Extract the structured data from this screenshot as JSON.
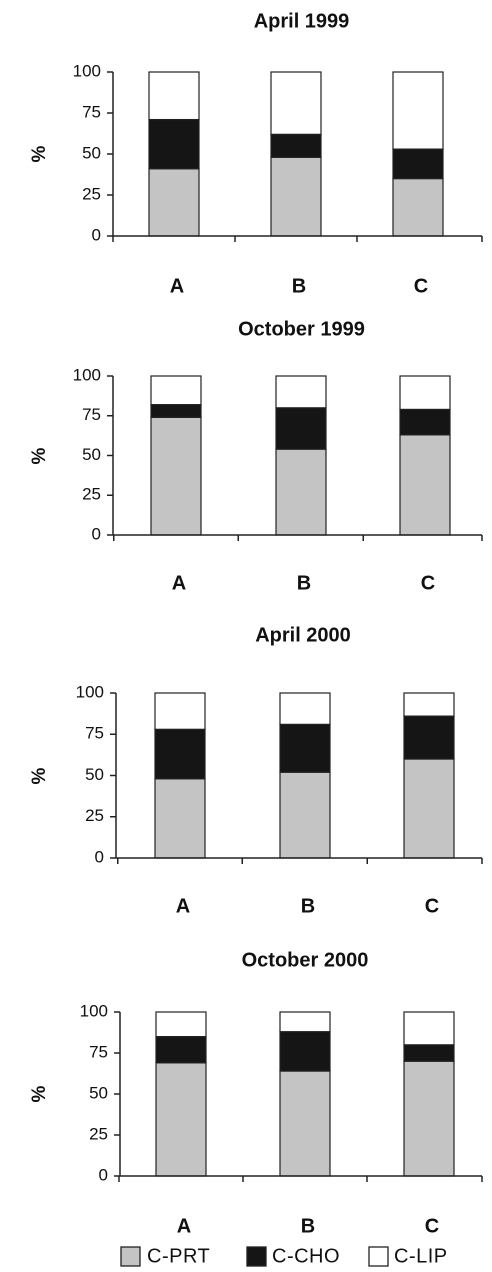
{
  "colors": {
    "prt": "#c4c4c4",
    "cho": "#151515",
    "lip": "#ffffff",
    "outline": "#222222"
  },
  "legend": [
    {
      "key": "prt",
      "label": "C-PRT"
    },
    {
      "key": "cho",
      "label": "C-CHO"
    },
    {
      "key": "lip",
      "label": "C-LIP"
    }
  ],
  "chart_data": [
    {
      "type": "bar",
      "stacked": true,
      "title": "April 1999",
      "categories": [
        "A",
        "B",
        "C"
      ],
      "ylabel": "%",
      "ylim": [
        0,
        100
      ],
      "yticks": [
        0,
        25,
        50,
        75,
        100
      ],
      "series": [
        {
          "name": "C-PRT",
          "key": "prt",
          "values": [
            41,
            48,
            35
          ]
        },
        {
          "name": "C-CHO",
          "key": "cho",
          "values": [
            30,
            14,
            18
          ]
        },
        {
          "name": "C-LIP",
          "key": "lip",
          "values": [
            29,
            38,
            47
          ]
        }
      ]
    },
    {
      "type": "bar",
      "stacked": true,
      "title": "October 1999",
      "categories": [
        "A",
        "B",
        "C"
      ],
      "ylabel": "%",
      "ylim": [
        0,
        100
      ],
      "yticks": [
        0,
        25,
        50,
        75,
        100
      ],
      "series": [
        {
          "name": "C-PRT",
          "key": "prt",
          "values": [
            74,
            54,
            63
          ]
        },
        {
          "name": "C-CHO",
          "key": "cho",
          "values": [
            8,
            26,
            16
          ]
        },
        {
          "name": "C-LIP",
          "key": "lip",
          "values": [
            18,
            20,
            21
          ]
        }
      ]
    },
    {
      "type": "bar",
      "stacked": true,
      "title": "April 2000",
      "categories": [
        "A",
        "B",
        "C"
      ],
      "ylabel": "%",
      "ylim": [
        0,
        100
      ],
      "yticks": [
        0,
        25,
        50,
        75,
        100
      ],
      "series": [
        {
          "name": "C-PRT",
          "key": "prt",
          "values": [
            48,
            52,
            60
          ]
        },
        {
          "name": "C-CHO",
          "key": "cho",
          "values": [
            30,
            29,
            26
          ]
        },
        {
          "name": "C-LIP",
          "key": "lip",
          "values": [
            22,
            19,
            14
          ]
        }
      ]
    },
    {
      "type": "bar",
      "stacked": true,
      "title": "October 2000",
      "categories": [
        "A",
        "B",
        "C"
      ],
      "ylabel": "%",
      "ylim": [
        0,
        100
      ],
      "yticks": [
        0,
        25,
        50,
        75,
        100
      ],
      "series": [
        {
          "name": "C-PRT",
          "key": "prt",
          "values": [
            69,
            64,
            70
          ]
        },
        {
          "name": "C-CHO",
          "key": "cho",
          "values": [
            16,
            24,
            10
          ]
        },
        {
          "name": "C-LIP",
          "key": "lip",
          "values": [
            15,
            12,
            20
          ]
        }
      ]
    }
  ]
}
